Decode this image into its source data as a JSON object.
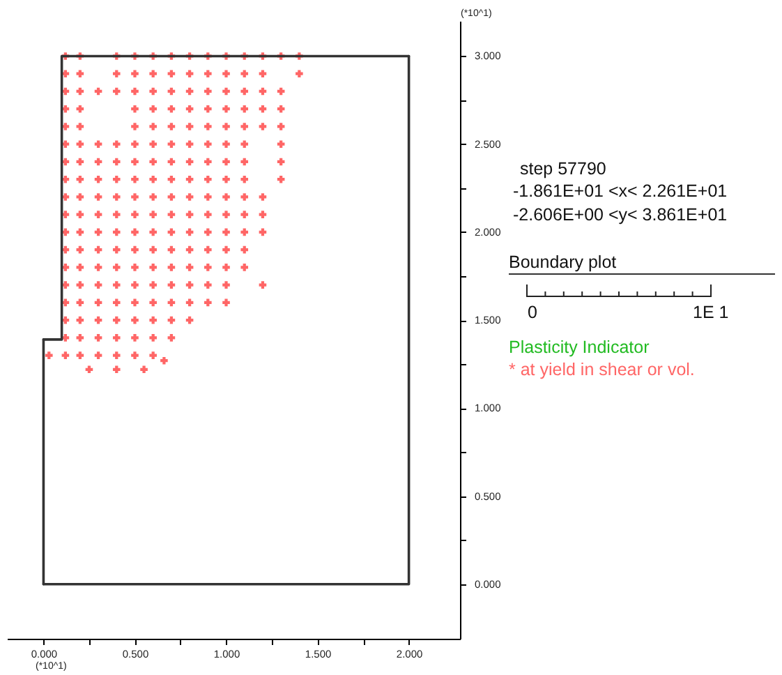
{
  "chart_data": {
    "type": "scatter",
    "xlabel": "(*10^1)",
    "ylabel": "(*10^1)",
    "legend_title": "Plasticity Indicator",
    "legend": "right",
    "annotations": [
      "step 57790",
      "-1.861E+01 <x< 2.261E+01",
      "-2.606E+00 <y< 3.861E+01",
      "Boundary plot",
      "0",
      "1E 1"
    ],
    "xlim": [
      -0.2,
      2.28
    ],
    "ylim": [
      -0.31,
      3.2
    ],
    "xticks": [
      {
        "value": 0,
        "label": "0.000"
      },
      {
        "value": 0.25,
        "label": null
      },
      {
        "value": 0.5,
        "label": "0.500"
      },
      {
        "value": 0.75,
        "label": null
      },
      {
        "value": 1,
        "label": "1.000"
      },
      {
        "value": 1.25,
        "label": null
      },
      {
        "value": 1.5,
        "label": "1.500"
      },
      {
        "value": 1.75,
        "label": null
      },
      {
        "value": 2,
        "label": "2.000"
      }
    ],
    "yticks": [
      {
        "value": 0,
        "label": "0.000"
      },
      {
        "value": 0.25,
        "label": null
      },
      {
        "value": 0.5,
        "label": "0.500"
      },
      {
        "value": 0.75,
        "label": null
      },
      {
        "value": 1,
        "label": "1.000"
      },
      {
        "value": 1.25,
        "label": null
      },
      {
        "value": 1.5,
        "label": "1.500"
      },
      {
        "value": 1.75,
        "label": null
      },
      {
        "value": 2,
        "label": "2.000"
      },
      {
        "value": 2.25,
        "label": null
      },
      {
        "value": 2.5,
        "label": "2.500"
      },
      {
        "value": 2.75,
        "label": null
      },
      {
        "value": 3,
        "label": "3.000"
      }
    ],
    "series": [
      {
        "type": "line",
        "color": "#333333",
        "line_style": "solid",
        "x": [
          0,
          2,
          2
        ],
        "values": [
          0,
          0,
          3
        ]
      },
      {
        "type": "line",
        "color": "#333333",
        "line_style": "solid",
        "x": [
          0,
          0.1,
          0.1,
          2
        ],
        "values": [
          1.39,
          1.39,
          3,
          3
        ]
      },
      {
        "type": "line",
        "color": "#333333",
        "line_style": "solid",
        "x": [
          0,
          0
        ],
        "values": [
          0,
          1.39
        ]
      },
      {
        "name": "* at yield in shear or vol.",
        "color": "#ff6666",
        "marker": "cross",
        "x": [
          0.12,
          0.12,
          0.12,
          0.12,
          0.12,
          0.12,
          0.12,
          0.12,
          0.12,
          0.12,
          0.12,
          0.12,
          0.12,
          0.12,
          0.12,
          0.12,
          0.12,
          0.12,
          0.2,
          0.2,
          0.2,
          0.2,
          0.2,
          0.2,
          0.2,
          0.2,
          0.2,
          0.2,
          0.2,
          0.2,
          0.2,
          0.2,
          0.2,
          0.2,
          0.2,
          0.2,
          0.3,
          0.3,
          0.3,
          0.3,
          0.3,
          0.3,
          0.3,
          0.3,
          0.3,
          0.3,
          0.3,
          0.3,
          0.3,
          0.3,
          0.4,
          0.4,
          0.4,
          0.4,
          0.4,
          0.4,
          0.4,
          0.4,
          0.4,
          0.4,
          0.4,
          0.4,
          0.4,
          0.4,
          0.4,
          0.4,
          0.5,
          0.5,
          0.5,
          0.5,
          0.5,
          0.5,
          0.5,
          0.5,
          0.5,
          0.5,
          0.5,
          0.5,
          0.5,
          0.5,
          0.5,
          0.5,
          0.5,
          0.5,
          0.6,
          0.6,
          0.6,
          0.6,
          0.6,
          0.6,
          0.6,
          0.6,
          0.6,
          0.6,
          0.6,
          0.6,
          0.6,
          0.6,
          0.6,
          0.6,
          0.6,
          0.6,
          0.7,
          0.7,
          0.7,
          0.7,
          0.7,
          0.7,
          0.7,
          0.7,
          0.7,
          0.7,
          0.7,
          0.7,
          0.7,
          0.7,
          0.7,
          0.7,
          0.7,
          0.8,
          0.8,
          0.8,
          0.8,
          0.8,
          0.8,
          0.8,
          0.8,
          0.8,
          0.8,
          0.8,
          0.8,
          0.8,
          0.8,
          0.8,
          0.8,
          0.9,
          0.9,
          0.9,
          0.9,
          0.9,
          0.9,
          0.9,
          0.9,
          0.9,
          0.9,
          0.9,
          0.9,
          0.9,
          0.9,
          0.9,
          1.0,
          1.0,
          1.0,
          1.0,
          1.0,
          1.0,
          1.0,
          1.0,
          1.0,
          1.0,
          1.0,
          1.0,
          1.0,
          1.0,
          1.0,
          1.1,
          1.1,
          1.1,
          1.1,
          1.1,
          1.1,
          1.1,
          1.1,
          1.1,
          1.1,
          1.1,
          1.1,
          1.1,
          1.2,
          1.2,
          1.2,
          1.2,
          1.2,
          1.2,
          1.2,
          1.2,
          1.2,
          1.3,
          1.3,
          1.3,
          1.3,
          1.3,
          1.3,
          1.3,
          1.4,
          1.4,
          0.03,
          0.25,
          0.4,
          0.55,
          0.66
        ],
        "values": [
          1.3,
          1.4,
          1.5,
          1.6,
          1.7,
          1.8,
          1.9,
          2.0,
          2.1,
          2.2,
          2.3,
          2.4,
          2.5,
          2.6,
          2.7,
          2.8,
          2.9,
          3.0,
          1.3,
          1.4,
          1.5,
          1.6,
          1.7,
          1.8,
          1.9,
          2.0,
          2.1,
          2.2,
          2.3,
          2.4,
          2.5,
          2.6,
          2.7,
          2.8,
          2.9,
          3.0,
          1.3,
          1.4,
          1.5,
          1.6,
          1.7,
          1.8,
          1.9,
          2.0,
          2.1,
          2.2,
          2.3,
          2.4,
          2.5,
          2.8,
          1.3,
          1.4,
          1.5,
          1.6,
          1.7,
          1.8,
          1.9,
          2.0,
          2.1,
          2.2,
          2.3,
          2.4,
          2.5,
          2.8,
          2.9,
          3.0,
          1.3,
          1.4,
          1.5,
          1.6,
          1.7,
          1.8,
          1.9,
          2.0,
          2.1,
          2.2,
          2.3,
          2.4,
          2.5,
          2.6,
          2.7,
          2.8,
          2.9,
          3.0,
          1.3,
          1.4,
          1.5,
          1.6,
          1.7,
          1.8,
          1.9,
          2.0,
          2.1,
          2.2,
          2.3,
          2.4,
          2.5,
          2.6,
          2.7,
          2.8,
          2.9,
          3.0,
          1.4,
          1.5,
          1.6,
          1.7,
          1.8,
          1.9,
          2.0,
          2.1,
          2.2,
          2.3,
          2.4,
          2.5,
          2.6,
          2.7,
          2.8,
          2.9,
          3.0,
          1.5,
          1.6,
          1.7,
          1.8,
          1.9,
          2.0,
          2.1,
          2.2,
          2.3,
          2.4,
          2.5,
          2.6,
          2.7,
          2.8,
          2.9,
          3.0,
          1.6,
          1.7,
          1.8,
          1.9,
          2.0,
          2.1,
          2.2,
          2.3,
          2.4,
          2.5,
          2.6,
          2.7,
          2.8,
          2.9,
          3.0,
          1.6,
          1.7,
          1.8,
          1.9,
          2.0,
          2.1,
          2.2,
          2.3,
          2.4,
          2.5,
          2.6,
          2.7,
          2.8,
          2.9,
          3.0,
          1.8,
          1.9,
          2.0,
          2.1,
          2.2,
          2.3,
          2.4,
          2.5,
          2.6,
          2.7,
          2.8,
          2.9,
          3.0,
          1.7,
          2.0,
          2.1,
          2.2,
          2.6,
          2.7,
          2.8,
          2.9,
          3.0,
          2.3,
          2.4,
          2.5,
          2.6,
          2.7,
          2.8,
          3.0,
          2.9,
          3.0,
          1.3,
          1.22,
          1.22,
          1.22,
          1.27
        ]
      }
    ]
  }
}
